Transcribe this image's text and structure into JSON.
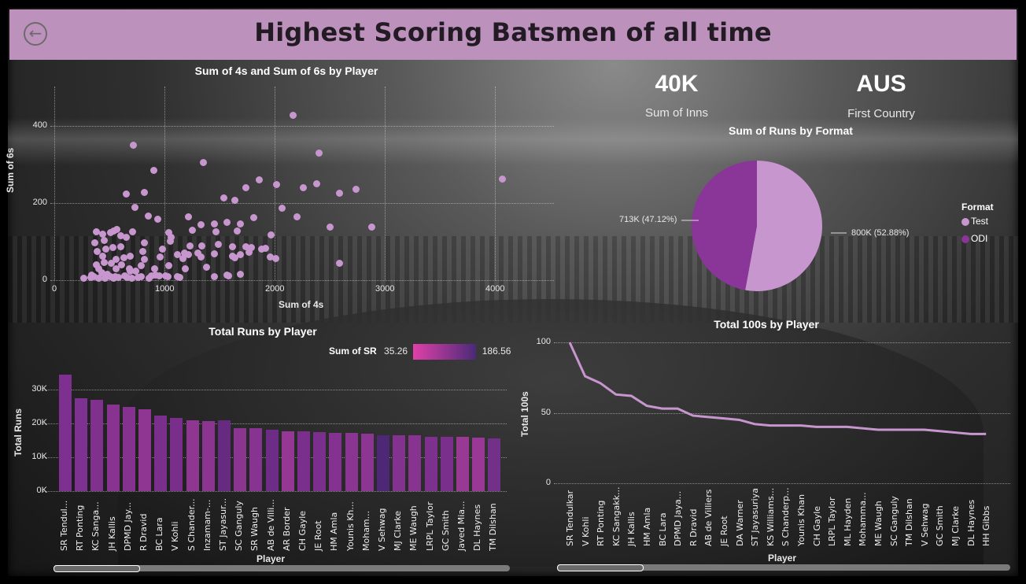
{
  "header": {
    "title": "Highest Scoring Batsmen of all time",
    "back_icon": "arrow-left-circle-icon",
    "bar_color": "#bc92bd"
  },
  "kpis": [
    {
      "value": "40K",
      "label": "Sum of Inns"
    },
    {
      "value": "AUS",
      "label": "First Country"
    }
  ],
  "colors": {
    "test": "#c896cf",
    "odi": "#8a3598",
    "sr_min": "#e040a8",
    "sr_max": "#4a2a78",
    "line": "#c896cf"
  },
  "chart_data": [
    {
      "type": "scatter",
      "title": "Sum of 4s and Sum of 6s by Player",
      "xlabel": "Sum of 4s",
      "ylabel": "Sum of 6s",
      "xlim": [
        0,
        4200
      ],
      "ylim": [
        0,
        460
      ],
      "x_ticks": [
        "0",
        "1000",
        "2000",
        "3000",
        "4000"
      ],
      "y_ticks": [
        "0",
        "200",
        "400"
      ],
      "grid": true,
      "points": [
        [
          2170,
          428
        ],
        [
          720,
          351
        ],
        [
          2400,
          330
        ],
        [
          1350,
          306
        ],
        [
          900,
          284
        ],
        [
          4070,
          262
        ],
        [
          1860,
          261
        ],
        [
          1740,
          240
        ],
        [
          2020,
          247
        ],
        [
          2380,
          251
        ],
        [
          2260,
          240
        ],
        [
          2740,
          235
        ],
        [
          2590,
          226
        ],
        [
          650,
          223
        ],
        [
          820,
          228
        ],
        [
          1540,
          213
        ],
        [
          1640,
          207
        ],
        [
          730,
          188
        ],
        [
          2070,
          186
        ],
        [
          850,
          166
        ],
        [
          1810,
          162
        ],
        [
          2200,
          164
        ],
        [
          940,
          158
        ],
        [
          1220,
          164
        ],
        [
          1690,
          146
        ],
        [
          1570,
          150
        ],
        [
          1450,
          146
        ],
        [
          1330,
          144
        ],
        [
          2500,
          137
        ],
        [
          2880,
          138
        ],
        [
          1250,
          130
        ],
        [
          1470,
          126
        ],
        [
          1660,
          128
        ],
        [
          1970,
          118
        ],
        [
          380,
          126
        ],
        [
          440,
          120
        ],
        [
          510,
          124
        ],
        [
          540,
          128
        ],
        [
          570,
          132
        ],
        [
          650,
          112
        ],
        [
          710,
          126
        ],
        [
          600,
          115
        ],
        [
          450,
          104
        ],
        [
          820,
          96
        ],
        [
          1040,
          124
        ],
        [
          1060,
          112
        ],
        [
          1050,
          102
        ],
        [
          1230,
          88
        ],
        [
          1340,
          88
        ],
        [
          1490,
          92
        ],
        [
          1620,
          86
        ],
        [
          1740,
          86
        ],
        [
          1790,
          84
        ],
        [
          1880,
          80
        ],
        [
          1920,
          82
        ],
        [
          1770,
          72
        ],
        [
          800,
          74
        ],
        [
          980,
          80
        ],
        [
          1220,
          67
        ],
        [
          1300,
          70
        ],
        [
          1450,
          68
        ],
        [
          1620,
          62
        ],
        [
          1690,
          66
        ],
        [
          370,
          96
        ],
        [
          390,
          74
        ],
        [
          530,
          85
        ],
        [
          600,
          86
        ],
        [
          470,
          80
        ],
        [
          440,
          62
        ],
        [
          560,
          54
        ],
        [
          630,
          58
        ],
        [
          690,
          62
        ],
        [
          820,
          54
        ],
        [
          960,
          60
        ],
        [
          1120,
          66
        ],
        [
          1170,
          56
        ],
        [
          1180,
          70
        ],
        [
          1640,
          58
        ],
        [
          1960,
          60
        ],
        [
          2010,
          56
        ],
        [
          2590,
          43
        ],
        [
          790,
          38
        ],
        [
          1040,
          38
        ],
        [
          1190,
          30
        ],
        [
          380,
          40
        ],
        [
          400,
          30
        ],
        [
          430,
          20
        ],
        [
          450,
          46
        ],
        [
          520,
          44
        ],
        [
          610,
          40
        ],
        [
          680,
          30
        ],
        [
          910,
          30
        ],
        [
          560,
          30
        ],
        [
          690,
          24
        ],
        [
          740,
          24
        ],
        [
          1010,
          12
        ],
        [
          1330,
          60
        ],
        [
          1380,
          34
        ],
        [
          1690,
          16
        ],
        [
          1450,
          10
        ],
        [
          1570,
          14
        ],
        [
          1580,
          12
        ],
        [
          550,
          10
        ],
        [
          880,
          12
        ],
        [
          920,
          14
        ],
        [
          950,
          12
        ],
        [
          1030,
          10
        ],
        [
          1120,
          10
        ],
        [
          1140,
          8
        ],
        [
          270,
          6
        ],
        [
          330,
          8
        ],
        [
          340,
          14
        ],
        [
          360,
          10
        ],
        [
          400,
          6
        ],
        [
          460,
          6
        ],
        [
          480,
          16
        ],
        [
          510,
          10
        ],
        [
          540,
          6
        ],
        [
          580,
          8
        ],
        [
          640,
          12
        ],
        [
          660,
          8
        ],
        [
          700,
          6
        ],
        [
          760,
          8
        ],
        [
          790,
          10
        ],
        [
          860,
          6
        ]
      ]
    },
    {
      "type": "pie",
      "title": "Sum of Runs by Format",
      "legend_title": "Format",
      "legend_position": "right",
      "categories": [
        "Test",
        "ODI"
      ],
      "values": [
        800000,
        713000
      ],
      "labels": [
        "800K (52.88%)",
        "713K (47.12%)"
      ],
      "percents": [
        52.88,
        47.12
      ]
    },
    {
      "type": "bar",
      "title": "Total Runs by Player",
      "xlabel": "Player",
      "ylabel": "Total Runs",
      "ylim": [
        0,
        35000
      ],
      "y_ticks": [
        "0K",
        "10K",
        "20K",
        "30K"
      ],
      "grid": true,
      "color_legend": {
        "label": "Sum of SR",
        "min": "35.26",
        "max": "186.56"
      },
      "categories": [
        "SR Tendul...",
        "RT Ponting",
        "KC Sanga...",
        "JH Kallis",
        "DPMD Jay...",
        "R Dravid",
        "BC Lara",
        "V Kohli",
        "S Chander...",
        "Inzamam-...",
        "ST Jayasur...",
        "SC Ganguly",
        "SR Waugh",
        "AB de Villi...",
        "AR Border",
        "CH Gayle",
        "JE Root",
        "HM Amla",
        "Younis Kh...",
        "Moham...",
        "V Sehwag",
        "MJ Clarke",
        "ME Waugh",
        "LRPL Taylor",
        "GC Smith",
        "Javed Mia...",
        "DL Haynes",
        "TM Dilshan"
      ],
      "values": [
        34400,
        27500,
        27000,
        25500,
        25000,
        24200,
        22400,
        21700,
        20900,
        20600,
        20900,
        18600,
        18500,
        18200,
        17700,
        17600,
        17500,
        17200,
        17100,
        17000,
        16600,
        16400,
        16400,
        16100,
        16000,
        16000,
        15900,
        15600
      ],
      "bar_colors": [
        "#7e3090",
        "#7d3190",
        "#80318e",
        "#88338f",
        "#85328f",
        "#8f3592",
        "#7a2f8c",
        "#7a2e8c",
        "#8f3592",
        "#8b3490",
        "#662a80",
        "#8a3590",
        "#863391",
        "#6d2c85",
        "#953893",
        "#7a2f8c",
        "#7a2f8c",
        "#833290",
        "#8a3591",
        "#8c3592",
        "#4e2777",
        "#843290",
        "#873491",
        "#7d308d",
        "#7a2f8c",
        "#983994",
        "#9a3995",
        "#733088"
      ]
    },
    {
      "type": "line",
      "title": "Total 100s by Player",
      "xlabel": "Player",
      "ylabel": "Total 100s",
      "ylim": [
        0,
        100
      ],
      "y_ticks": [
        "0",
        "50",
        "100"
      ],
      "grid": true,
      "categories": [
        "SR Tendulkar",
        "V Kohli",
        "RT Ponting",
        "KC Sangakk...",
        "JH Kallis",
        "HM Amla",
        "BC Lara",
        "DPMD Jaya...",
        "R Dravid",
        "AB de Villiers",
        "JE Root",
        "DA Warner",
        "ST Jayasuriya",
        "KS Williams...",
        "S Chanderp...",
        "Younis Khan",
        "CH Gayle",
        "LRPL Taylor",
        "ML Hayden",
        "Mohamma...",
        "ME Waugh",
        "SC Ganguly",
        "TM Dilshan",
        "V Sehwag",
        "GC Smith",
        "MJ Clarke",
        "DL Haynes",
        "HH Gibbs"
      ],
      "values": [
        100,
        76,
        71,
        63,
        62,
        55,
        53,
        53,
        48,
        47,
        46,
        45,
        42,
        41,
        41,
        41,
        40,
        40,
        40,
        39,
        38,
        38,
        38,
        38,
        37,
        36,
        35,
        35
      ]
    }
  ],
  "scrollbars": [
    {
      "name": "bar-chart-scrollbar"
    },
    {
      "name": "line-chart-scrollbar"
    }
  ]
}
